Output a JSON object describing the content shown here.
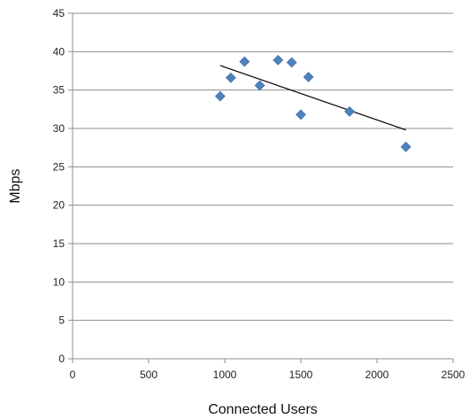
{
  "chart_data": {
    "type": "scatter",
    "title": "",
    "xlabel": "Connected Users",
    "ylabel": "Mbps",
    "xlim": [
      0,
      2500
    ],
    "ylim": [
      0,
      45
    ],
    "xticks": [
      0,
      500,
      1000,
      1500,
      2000,
      2500
    ],
    "yticks": [
      0,
      5,
      10,
      15,
      20,
      25,
      30,
      35,
      40,
      45
    ],
    "grid": "horizontal",
    "legend": "none",
    "marker_color": "#4f81bd",
    "trendline_color": "#000000",
    "series": [
      {
        "x": [
          970,
          1040,
          1130,
          1230,
          1350,
          1440,
          1500,
          1550,
          1820,
          2190
        ],
        "y": [
          34.2,
          36.6,
          38.7,
          35.6,
          38.9,
          38.6,
          31.8,
          36.7,
          32.2,
          27.6
        ]
      }
    ],
    "trendline": {
      "x": [
        970,
        2190
      ],
      "y": [
        38.2,
        29.8
      ]
    }
  }
}
